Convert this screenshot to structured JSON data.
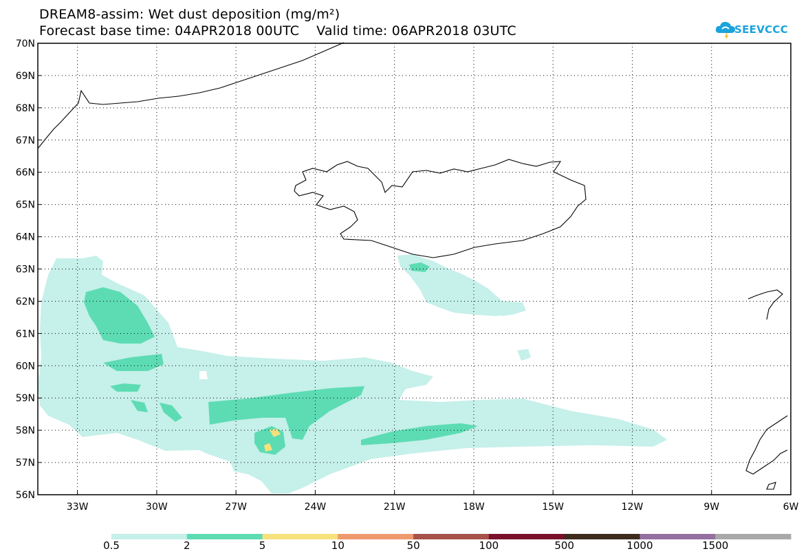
{
  "title": {
    "line1": "DREAM8-assim: Wet dust deposition (mg/m²)",
    "line2": "Forecast base time: 04APR2018 00UTC    Valid time: 06APR2018 03UTC"
  },
  "logo": {
    "text": "SEEVCCC",
    "color": "#1aa3dc"
  },
  "map": {
    "lat_labels": [
      "70N",
      "69N",
      "68N",
      "67N",
      "66N",
      "65N",
      "64N",
      "63N",
      "62N",
      "61N",
      "60N",
      "59N",
      "58N",
      "57N",
      "56N"
    ],
    "lon_labels": [
      "33W",
      "30W",
      "27W",
      "24W",
      "21W",
      "18W",
      "15W",
      "12W",
      "9W",
      "6W"
    ],
    "lat_range": [
      56,
      70
    ],
    "lon_range": [
      -34.5,
      -6
    ],
    "grid": "dotted"
  },
  "legend": {
    "labels": [
      "0.5",
      "2",
      "5",
      "10",
      "50",
      "100",
      "500",
      "1000",
      "1500"
    ],
    "colors": [
      "#c6f0ea",
      "#5ddcb4",
      "#f7e17c",
      "#ef9a6e",
      "#a6514a",
      "#7a0f2c",
      "#3d2b1e",
      "#9470a0",
      "#a9a9a9"
    ]
  }
}
